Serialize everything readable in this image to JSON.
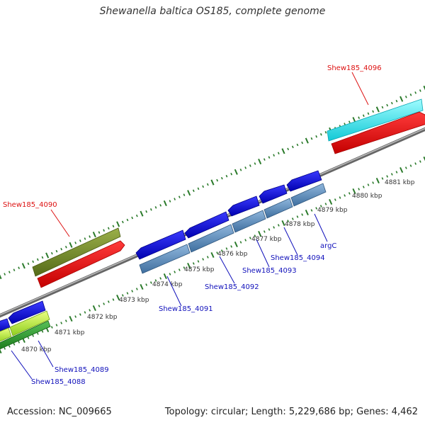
{
  "title": "Shewanella baltica OS185, complete genome",
  "footer": {
    "accession": "Accession: NC_009665",
    "summary": "Topology: circular; Length: 5,229,686 bp; Genes: 4,462"
  },
  "colors": {
    "backbone": "#888888",
    "tick": "#2a7a2a",
    "forward_label": "#dd1111",
    "reverse_label": "#1111bb"
  },
  "scale_labels": [
    "4870 kbp",
    "4871 kbp",
    "4872 kbp",
    "4873 kbp",
    "4874 kbp",
    "4875 kbp",
    "4876 kbp",
    "4877 kbp",
    "4878 kbp",
    "4879 kbp",
    "4880 kbp",
    "4881 kbp"
  ],
  "genes": {
    "shew185_4096": "Shew185_4096",
    "shew185_4090": "Shew185_4090",
    "shew185_4088": "Shew185_4088",
    "shew185_4089": "Shew185_4089",
    "shew185_4091": "Shew185_4091",
    "shew185_4092": "Shew185_4092",
    "shew185_4093": "Shew185_4093",
    "shew185_4094": "Shew185_4094",
    "argC": "argC"
  }
}
